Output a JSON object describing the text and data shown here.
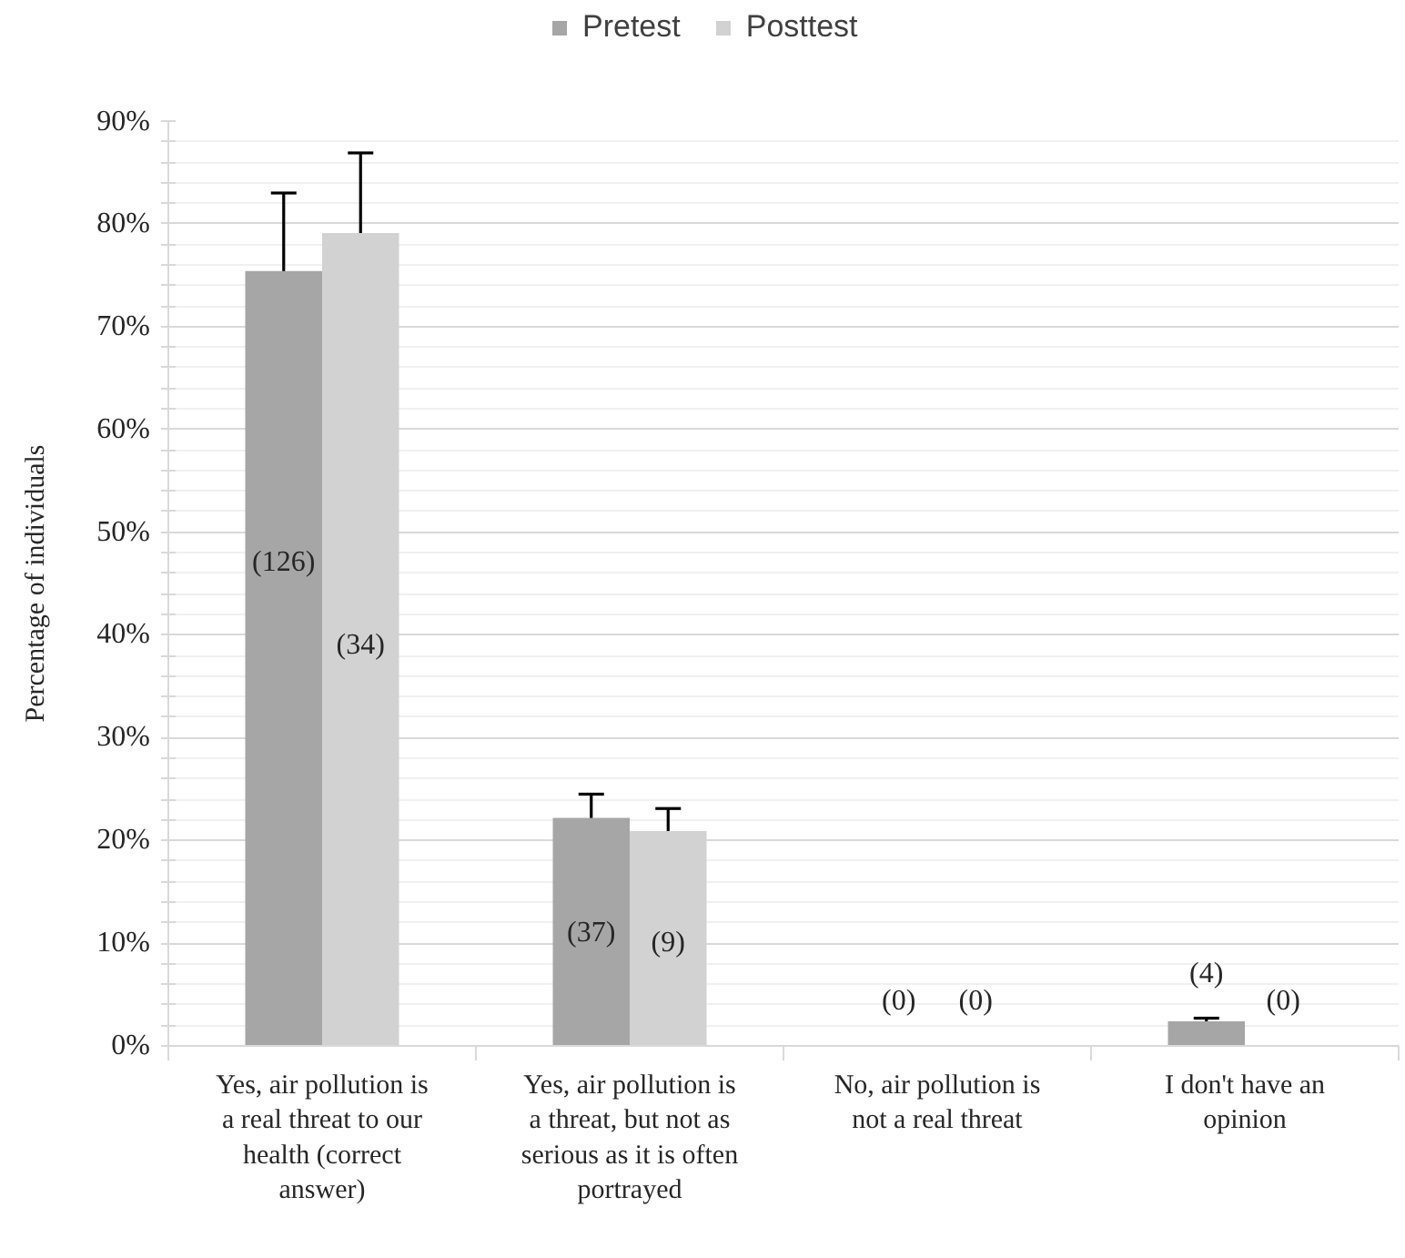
{
  "chart_data": {
    "type": "bar",
    "categories": [
      "Yes, air pollution is a real threat to our health (correct answer)",
      "Yes, air pollution is a threat, but not as serious as it is often portrayed",
      "No, air pollution is not a real threat",
      "I don't have an opinion"
    ],
    "ylabel": "Percentage of individuals",
    "ylim": [
      0,
      90
    ],
    "yticks": [
      {
        "value": 0,
        "label": "0%"
      },
      {
        "value": 2,
        "label": null
      },
      {
        "value": 4,
        "label": null
      },
      {
        "value": 6,
        "label": null
      },
      {
        "value": 8,
        "label": null
      },
      {
        "value": 10,
        "label": "10%"
      },
      {
        "value": 12,
        "label": null
      },
      {
        "value": 14,
        "label": null
      },
      {
        "value": 16,
        "label": null
      },
      {
        "value": 18,
        "label": null
      },
      {
        "value": 20,
        "label": "20%"
      },
      {
        "value": 22,
        "label": null
      },
      {
        "value": 24,
        "label": null
      },
      {
        "value": 26,
        "label": null
      },
      {
        "value": 28,
        "label": null
      },
      {
        "value": 30,
        "label": "30%"
      },
      {
        "value": 32,
        "label": null
      },
      {
        "value": 34,
        "label": null
      },
      {
        "value": 36,
        "label": null
      },
      {
        "value": 38,
        "label": null
      },
      {
        "value": 40,
        "label": "40%"
      },
      {
        "value": 42,
        "label": null
      },
      {
        "value": 44,
        "label": null
      },
      {
        "value": 46,
        "label": null
      },
      {
        "value": 48,
        "label": null
      },
      {
        "value": 50,
        "label": "50%"
      },
      {
        "value": 52,
        "label": null
      },
      {
        "value": 54,
        "label": null
      },
      {
        "value": 56,
        "label": null
      },
      {
        "value": 58,
        "label": null
      },
      {
        "value": 60,
        "label": "60%"
      },
      {
        "value": 62,
        "label": null
      },
      {
        "value": 64,
        "label": null
      },
      {
        "value": 66,
        "label": null
      },
      {
        "value": 68,
        "label": null
      },
      {
        "value": 70,
        "label": "70%"
      },
      {
        "value": 72,
        "label": null
      },
      {
        "value": 74,
        "label": null
      },
      {
        "value": 76,
        "label": null
      },
      {
        "value": 78,
        "label": null
      },
      {
        "value": 80,
        "label": "80%"
      },
      {
        "value": 82,
        "label": null
      },
      {
        "value": 84,
        "label": null
      },
      {
        "value": 86,
        "label": null
      },
      {
        "value": 88,
        "label": null
      },
      {
        "value": 90,
        "label": "90%"
      }
    ],
    "grid": "y",
    "legend": "top",
    "series": [
      {
        "name": "Pretest",
        "color": "#a6a6a6",
        "values": [
          75.4,
          22.2,
          0,
          2.4
        ],
        "errors": [
          7.6,
          2.3,
          null,
          0.3
        ]
      },
      {
        "name": "Posttest",
        "color": "#d2d2d2",
        "values": [
          79.1,
          20.9,
          0,
          0
        ],
        "errors": [
          7.8,
          2.2,
          null,
          null
        ]
      }
    ],
    "annotations": [
      {
        "text": "(126)",
        "x": "Yes, air pollution is a real threat to our health (correct answer)",
        "y": 47
      },
      {
        "text": "(34)",
        "x": "Yes, air pollution is a real threat to our health (correct answer)",
        "y": 39
      },
      {
        "text": "(37)",
        "x": "Yes, air pollution is a threat, but not as serious as it is often portrayed",
        "y": 11
      },
      {
        "text": "(9)",
        "x": "Yes, air pollution is a threat, but not as serious as it is often portrayed",
        "y": 10
      },
      {
        "text": "(0)",
        "x": "No, air pollution is not a real threat",
        "y": 0
      },
      {
        "text": "(0)",
        "x": "No, air pollution is not a real threat",
        "y": 0
      },
      {
        "text": "(4)",
        "x": "I don't have an opinion",
        "y": 2.4
      },
      {
        "text": "(0)",
        "x": "I don't have an opinion",
        "y": 0
      }
    ]
  }
}
